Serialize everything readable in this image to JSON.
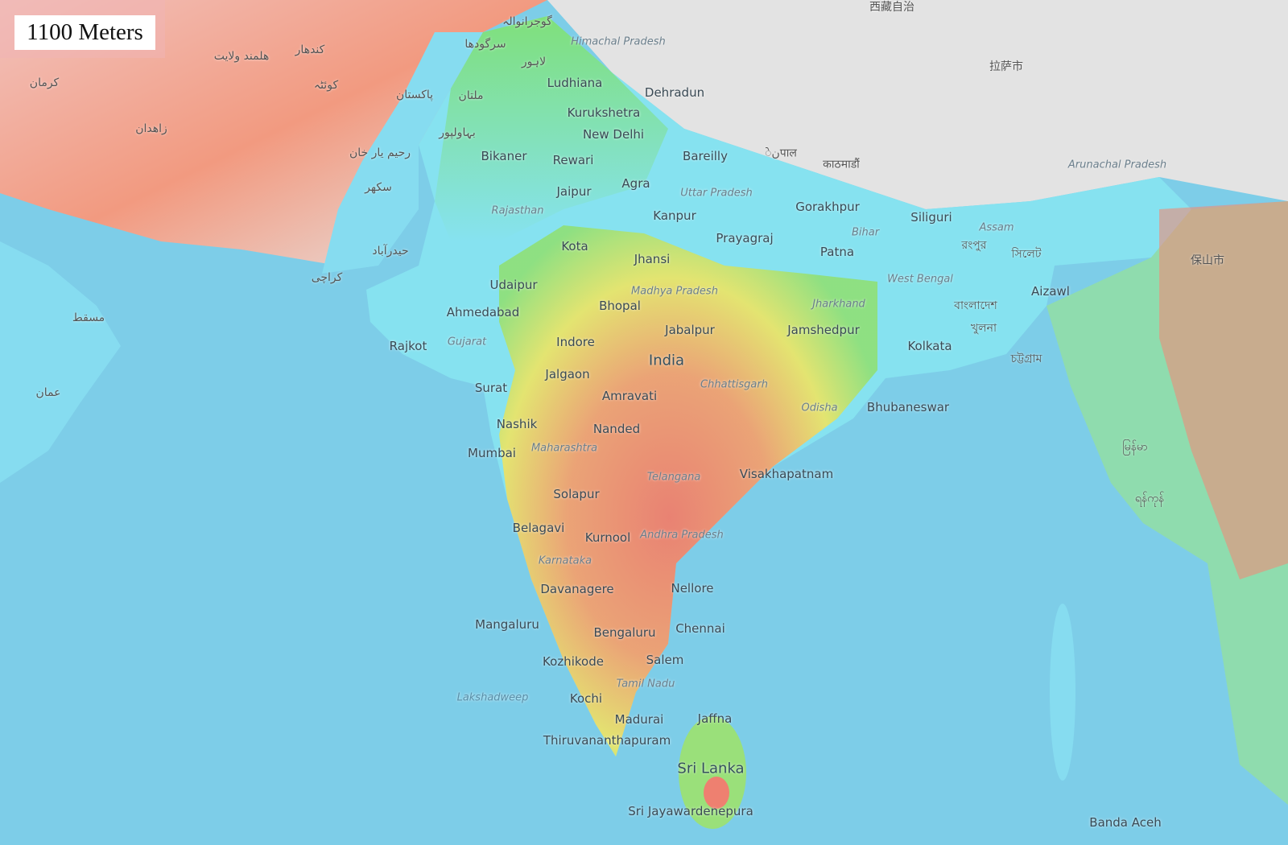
{
  "legend": {
    "elevation_label": "1100 Meters"
  },
  "colors": {
    "ocean": "#7dcde8",
    "lowland": "#86e0f2",
    "plain_green": "#7fe07a",
    "upland_yellow": "#e8e86a",
    "high_red": "#ee7a6a",
    "mountain_gray": "#e2e2e2"
  },
  "labels": [
    {
      "text": "Ludhiana",
      "type": "city"
    },
    {
      "text": "Dehradun",
      "type": "city"
    },
    {
      "text": "Kurukshetra",
      "type": "city"
    },
    {
      "text": "New Delhi",
      "type": "city"
    },
    {
      "text": "Bikaner",
      "type": "city"
    },
    {
      "text": "Rewari",
      "type": "city"
    },
    {
      "text": "Bareilly",
      "type": "city"
    },
    {
      "text": "Jaipur",
      "type": "city"
    },
    {
      "text": "Agra",
      "type": "city"
    },
    {
      "text": "Uttar Pradesh",
      "type": "region"
    },
    {
      "text": "Rajasthan",
      "type": "region"
    },
    {
      "text": "Kanpur",
      "type": "city"
    },
    {
      "text": "Gorakhpur",
      "type": "city"
    },
    {
      "text": "Siliguri",
      "type": "city"
    },
    {
      "text": "Kota",
      "type": "city"
    },
    {
      "text": "Prayagraj",
      "type": "city"
    },
    {
      "text": "Bihar",
      "type": "region"
    },
    {
      "text": "Assam",
      "type": "region"
    },
    {
      "text": "Patna",
      "type": "city"
    },
    {
      "text": "Jhansi",
      "type": "city"
    },
    {
      "text": "Udaipur",
      "type": "city"
    },
    {
      "text": "Madhya Pradesh",
      "type": "region"
    },
    {
      "text": "West Bengal",
      "type": "region"
    },
    {
      "text": "Aizawl",
      "type": "city"
    },
    {
      "text": "Jharkhand",
      "type": "region"
    },
    {
      "text": "Ahmedabad",
      "type": "city"
    },
    {
      "text": "Bhopal",
      "type": "city"
    },
    {
      "text": "Jabalpur",
      "type": "city"
    },
    {
      "text": "Jamshedpur",
      "type": "city"
    },
    {
      "text": "Rajkot",
      "type": "city"
    },
    {
      "text": "Gujarat",
      "type": "region"
    },
    {
      "text": "Indore",
      "type": "city"
    },
    {
      "text": "Kolkata",
      "type": "city"
    },
    {
      "text": "India",
      "type": "big"
    },
    {
      "text": "Jalgaon",
      "type": "city"
    },
    {
      "text": "Surat",
      "type": "city"
    },
    {
      "text": "Chhattisgarh",
      "type": "region"
    },
    {
      "text": "Amravati",
      "type": "city"
    },
    {
      "text": "Odisha",
      "type": "region"
    },
    {
      "text": "Bhubaneswar",
      "type": "city"
    },
    {
      "text": "Nashik",
      "type": "city"
    },
    {
      "text": "Nanded",
      "type": "city"
    },
    {
      "text": "Mumbai",
      "type": "city"
    },
    {
      "text": "Maharashtra",
      "type": "region"
    },
    {
      "text": "Visakhapatnam",
      "type": "city"
    },
    {
      "text": "Telangana",
      "type": "region"
    },
    {
      "text": "Solapur",
      "type": "city"
    },
    {
      "text": "Belagavi",
      "type": "city"
    },
    {
      "text": "Kurnool",
      "type": "city"
    },
    {
      "text": "Andhra Pradesh",
      "type": "region"
    },
    {
      "text": "Karnataka",
      "type": "region"
    },
    {
      "text": "Davanagere",
      "type": "city"
    },
    {
      "text": "Nellore",
      "type": "city"
    },
    {
      "text": "Mangaluru",
      "type": "city"
    },
    {
      "text": "Bengaluru",
      "type": "city"
    },
    {
      "text": "Chennai",
      "type": "city"
    },
    {
      "text": "Kozhikode",
      "type": "city"
    },
    {
      "text": "Salem",
      "type": "city"
    },
    {
      "text": "Tamil Nadu",
      "type": "region"
    },
    {
      "text": "Lakshadweep",
      "type": "sea"
    },
    {
      "text": "Kochi",
      "type": "city"
    },
    {
      "text": "Madurai",
      "type": "city"
    },
    {
      "text": "Jaffna",
      "type": "city"
    },
    {
      "text": "Thiruvananthapuram",
      "type": "city"
    },
    {
      "text": "Sri Lanka",
      "type": "big"
    },
    {
      "text": "Sri Jayawardenepura",
      "type": "city"
    },
    {
      "text": "Banda Aceh",
      "type": "city"
    },
    {
      "text": "Himachal Pradesh",
      "type": "region"
    },
    {
      "text": "Arunachal Pradesh",
      "type": "region"
    },
    {
      "text": "گوجرانوالہ",
      "type": "foreign"
    },
    {
      "text": "سرگودھا",
      "type": "foreign"
    },
    {
      "text": "لاہور",
      "type": "foreign"
    },
    {
      "text": "پاکستان",
      "type": "foreign"
    },
    {
      "text": "ملتان",
      "type": "foreign"
    },
    {
      "text": "بہاولپور",
      "type": "foreign"
    },
    {
      "text": "رحیم یار خان",
      "type": "foreign"
    },
    {
      "text": "سکھر",
      "type": "foreign"
    },
    {
      "text": "حیدرآباد",
      "type": "foreign"
    },
    {
      "text": "کراچی",
      "type": "foreign"
    },
    {
      "text": "کوئٹہ",
      "type": "foreign"
    },
    {
      "text": "کندهار",
      "type": "foreign"
    },
    {
      "text": "هلمند ولایت",
      "type": "foreign"
    },
    {
      "text": "زاهدان",
      "type": "foreign"
    },
    {
      "text": "کرمان",
      "type": "foreign"
    },
    {
      "text": "مسقط",
      "type": "foreign"
    },
    {
      "text": "عمان",
      "type": "foreign"
    },
    {
      "text": "نेपाल",
      "type": "foreign"
    },
    {
      "text": "काठमाडौं",
      "type": "foreign"
    },
    {
      "text": "西藏自治",
      "type": "foreign"
    },
    {
      "text": "拉萨市",
      "type": "foreign"
    },
    {
      "text": "বাংলাদেশ",
      "type": "foreign"
    },
    {
      "text": "খুলনা",
      "type": "foreign"
    },
    {
      "text": "চট্টগ্রাম",
      "type": "foreign"
    },
    {
      "text": "সিলেট",
      "type": "foreign"
    },
    {
      "text": "রংপুর",
      "type": "foreign"
    },
    {
      "text": "保山市",
      "type": "foreign"
    },
    {
      "text": "မြန်မာ",
      "type": "foreign"
    },
    {
      "text": "ရန်ကုန်",
      "type": "foreign"
    }
  ]
}
